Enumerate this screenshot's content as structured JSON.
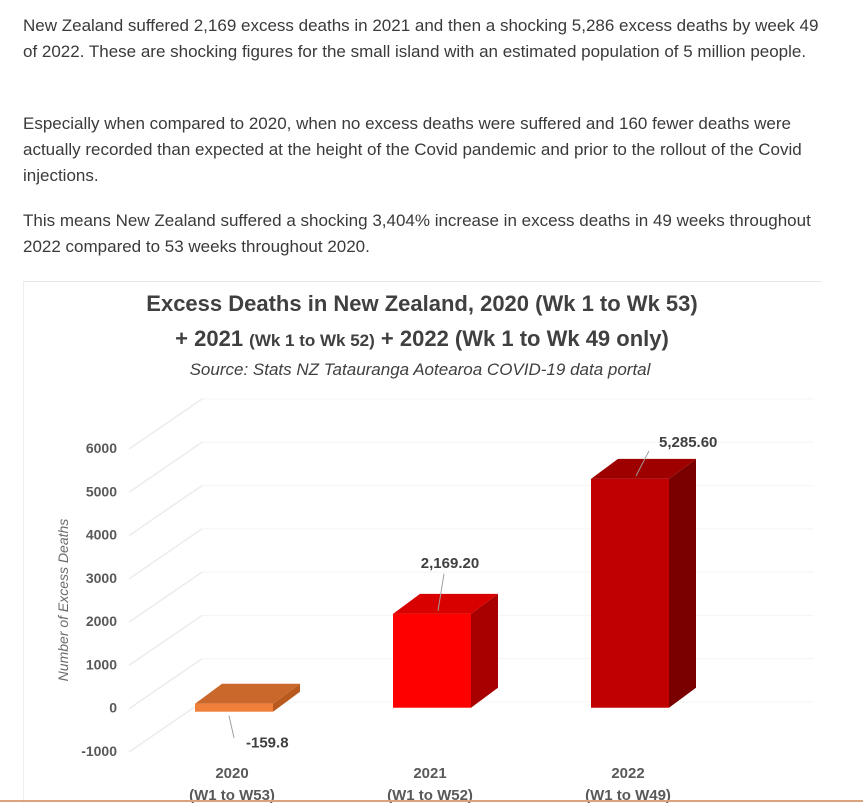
{
  "article": {
    "paragraphs": [
      "New Zealand suffered 2,169 excess deaths in 2021 and then a shocking 5,286 excess deaths by week 49 of 2022. These are shocking figures for the small island with an estimated population of 5 million people.",
      "Especially when compared to 2020, when no excess deaths were suffered and 160 fewer deaths were actually recorded than expected at the height of the Covid pandemic and prior to the rollout of the Covid injections.",
      "This means New Zealand suffered a shocking 3,404% increase in excess deaths in 49 weeks throughout 2022 compared to 53 weeks throughout 2020."
    ]
  },
  "chart_data": {
    "type": "bar",
    "title_line1": "Excess Deaths in New Zealand, 2020 (Wk 1 to Wk 53)",
    "title_line2_a": "+ 2021 ",
    "title_line2_b": "(Wk 1 to Wk 52)",
    "title_line2_c": " + 2022 (Wk 1 to Wk 49 only)",
    "subtitle": "Source: Stats NZ Tatauranga Aotearoa COVID-19 data portal",
    "ylabel": "Number of Excess Deaths",
    "xlabel": "",
    "ylim": [
      -1000,
      6000
    ],
    "yticks": [
      "6000",
      "5000",
      "4000",
      "3000",
      "2000",
      "1000",
      "0",
      "-1000"
    ],
    "categories": [
      {
        "year": "2020",
        "weeks": "(W1 to W53)"
      },
      {
        "year": "2021",
        "weeks": "(W1 to W52)"
      },
      {
        "year": "2022",
        "weeks": "(W1 to W49)"
      }
    ],
    "values": [
      -159.8,
      2169.2,
      5285.6
    ],
    "value_labels": [
      "-159.8",
      "2,169.20",
      "5,285.60"
    ],
    "colors": {
      "2020": {
        "front": "#f07f3a",
        "side": "#b85a1e",
        "top": "#c9682a"
      },
      "2021": {
        "front": "#ff0000",
        "side": "#a80000",
        "top": "#d90000"
      },
      "2022": {
        "front": "#c00000",
        "side": "#7a0000",
        "top": "#9e0000"
      }
    },
    "grid": true,
    "legend": "none"
  }
}
